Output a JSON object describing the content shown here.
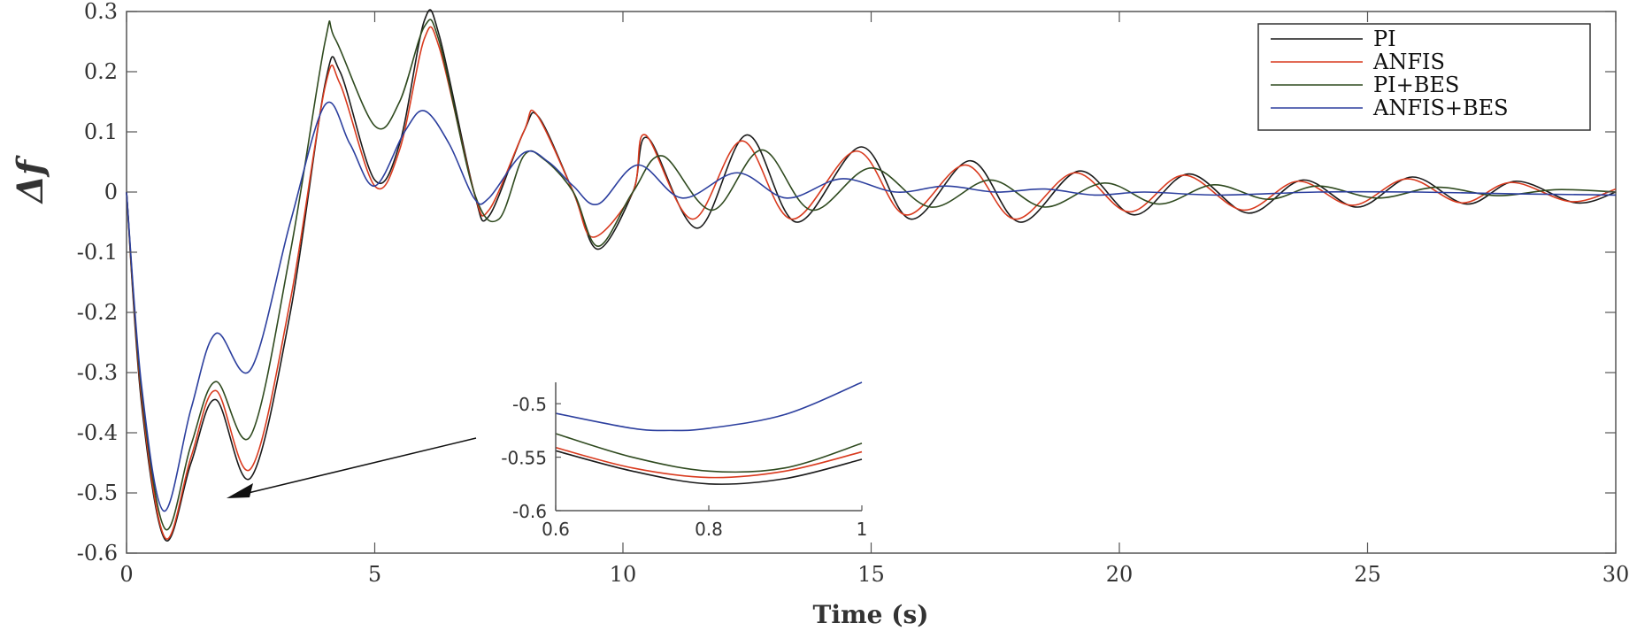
{
  "chart_data": [
    {
      "type": "line",
      "title": "",
      "xlabel": "Time (s)",
      "ylabel": "Δf",
      "xlim": [
        0,
        30
      ],
      "ylim": [
        -0.6,
        0.3
      ],
      "x_ticks": [
        "0",
        "5",
        "10",
        "15",
        "20",
        "25",
        "30"
      ],
      "y_ticks": [
        "-0.6",
        "-0.5",
        "-0.4",
        "-0.3",
        "-0.2",
        "-0.1",
        "0",
        "0.1",
        "0.2",
        "0.3"
      ],
      "grid": false,
      "legend_position": "top-right",
      "series": [
        {
          "name": "PI",
          "color": "#1a1a1a",
          "points": [
            [
              0,
              0
            ],
            [
              0.3,
              -0.35
            ],
            [
              0.78,
              -0.578
            ],
            [
              1.3,
              -0.45
            ],
            [
              1.8,
              -0.345
            ],
            [
              2.5,
              -0.475
            ],
            [
              3.3,
              -0.2
            ],
            [
              4,
              0.18
            ],
            [
              4.3,
              0.2
            ],
            [
              5,
              0.02
            ],
            [
              5.5,
              0.08
            ],
            [
              6,
              0.285
            ],
            [
              6.3,
              0.26
            ],
            [
              7,
              0
            ],
            [
              7.3,
              -0.04
            ],
            [
              8,
              0.1
            ],
            [
              8.3,
              0.125
            ],
            [
              9,
              0
            ],
            [
              9.5,
              -0.095
            ],
            [
              10.2,
              0
            ],
            [
              10.5,
              0.09
            ],
            [
              11.5,
              -0.06
            ],
            [
              12.5,
              0.095
            ],
            [
              13.5,
              -0.05
            ],
            [
              14.8,
              0.075
            ],
            [
              15.8,
              -0.045
            ],
            [
              17,
              0.052
            ],
            [
              18,
              -0.05
            ],
            [
              19.2,
              0.035
            ],
            [
              20.3,
              -0.038
            ],
            [
              21.4,
              0.03
            ],
            [
              22.6,
              -0.035
            ],
            [
              23.7,
              0.02
            ],
            [
              24.8,
              -0.025
            ],
            [
              25.9,
              0.025
            ],
            [
              27,
              -0.02
            ],
            [
              28,
              0.018
            ],
            [
              29.2,
              -0.018
            ],
            [
              30,
              0
            ]
          ]
        },
        {
          "name": "ANFIS",
          "color": "#d93a1e",
          "points": [
            [
              0,
              0
            ],
            [
              0.3,
              -0.34
            ],
            [
              0.78,
              -0.575
            ],
            [
              1.3,
              -0.44
            ],
            [
              1.8,
              -0.33
            ],
            [
              2.5,
              -0.46
            ],
            [
              3.3,
              -0.18
            ],
            [
              4,
              0.175
            ],
            [
              4.3,
              0.18
            ],
            [
              5,
              0.01
            ],
            [
              5.5,
              0.07
            ],
            [
              6,
              0.255
            ],
            [
              6.3,
              0.24
            ],
            [
              7,
              0
            ],
            [
              7.3,
              -0.03
            ],
            [
              8,
              0.1
            ],
            [
              8.25,
              0.13
            ],
            [
              9,
              0
            ],
            [
              9.4,
              -0.075
            ],
            [
              10.2,
              0
            ],
            [
              10.45,
              0.095
            ],
            [
              11.4,
              -0.045
            ],
            [
              12.4,
              0.085
            ],
            [
              13.4,
              -0.045
            ],
            [
              14.7,
              0.068
            ],
            [
              15.7,
              -0.038
            ],
            [
              16.9,
              0.045
            ],
            [
              17.9,
              -0.045
            ],
            [
              19.1,
              0.032
            ],
            [
              20.2,
              -0.033
            ],
            [
              21.3,
              0.028
            ],
            [
              22.5,
              -0.03
            ],
            [
              23.6,
              0.018
            ],
            [
              24.7,
              -0.022
            ],
            [
              25.8,
              0.022
            ],
            [
              26.9,
              -0.018
            ],
            [
              27.9,
              0.016
            ],
            [
              29.1,
              -0.016
            ],
            [
              30,
              0.005
            ]
          ]
        },
        {
          "name": "PI+BES",
          "color": "#2f4a1f",
          "points": [
            [
              0,
              0
            ],
            [
              0.3,
              -0.33
            ],
            [
              0.78,
              -0.56
            ],
            [
              1.3,
              -0.42
            ],
            [
              1.8,
              -0.315
            ],
            [
              2.5,
              -0.405
            ],
            [
              3.3,
              -0.1
            ],
            [
              4,
              0.25
            ],
            [
              4.2,
              0.255
            ],
            [
              5,
              0.11
            ],
            [
              5.5,
              0.15
            ],
            [
              6,
              0.275
            ],
            [
              6.3,
              0.25
            ],
            [
              7,
              0
            ],
            [
              7.5,
              -0.045
            ],
            [
              8,
              0.06
            ],
            [
              8.4,
              0.055
            ],
            [
              9,
              0
            ],
            [
              9.5,
              -0.09
            ],
            [
              10.2,
              0
            ],
            [
              10.8,
              0.06
            ],
            [
              11.8,
              -0.03
            ],
            [
              12.8,
              0.07
            ],
            [
              13.8,
              -0.03
            ],
            [
              15,
              0.04
            ],
            [
              16.2,
              -0.025
            ],
            [
              17.4,
              0.02
            ],
            [
              18.5,
              -0.025
            ],
            [
              19.7,
              0.015
            ],
            [
              20.8,
              -0.02
            ],
            [
              21.9,
              0.012
            ],
            [
              23,
              -0.012
            ],
            [
              24,
              0.01
            ],
            [
              25.2,
              -0.01
            ],
            [
              26.4,
              0.008
            ],
            [
              27.6,
              -0.006
            ],
            [
              28.8,
              0.004
            ],
            [
              30,
              0
            ]
          ]
        },
        {
          "name": "ANFIS+BES",
          "color": "#2c3f9e",
          "points": [
            [
              0,
              0
            ],
            [
              0.3,
              -0.32
            ],
            [
              0.75,
              -0.53
            ],
            [
              1.3,
              -0.36
            ],
            [
              1.8,
              -0.235
            ],
            [
              2.5,
              -0.295
            ],
            [
              3.3,
              -0.05
            ],
            [
              4,
              0.145
            ],
            [
              4.5,
              0.08
            ],
            [
              5,
              0.01
            ],
            [
              5.6,
              0.1
            ],
            [
              6,
              0.135
            ],
            [
              6.5,
              0.08
            ],
            [
              7,
              -0.01
            ],
            [
              7.3,
              -0.01
            ],
            [
              8,
              0.065
            ],
            [
              8.5,
              0.05
            ],
            [
              9,
              0.01
            ],
            [
              9.5,
              -0.02
            ],
            [
              10.3,
              0.045
            ],
            [
              11.2,
              -0.01
            ],
            [
              12.3,
              0.032
            ],
            [
              13.3,
              -0.01
            ],
            [
              14.4,
              0.022
            ],
            [
              15.5,
              0
            ],
            [
              16.5,
              0.01
            ],
            [
              17.5,
              0
            ],
            [
              18.5,
              0.005
            ],
            [
              19.5,
              -0.005
            ],
            [
              20.5,
              0
            ],
            [
              22,
              -0.005
            ],
            [
              24,
              0
            ],
            [
              26,
              0
            ],
            [
              28,
              -0.003
            ],
            [
              30,
              -0.005
            ]
          ]
        }
      ]
    },
    {
      "type": "line",
      "title": "",
      "xlabel": "",
      "ylabel": "",
      "xlim": [
        0.6,
        1
      ],
      "ylim": [
        -0.6,
        -0.48
      ],
      "x_ticks": [
        "0.6",
        "0.8",
        "1"
      ],
      "y_ticks": [
        "-0.6",
        "-0.55",
        "-0.5"
      ],
      "grid": false,
      "series": [
        {
          "name": "PI",
          "color": "#1a1a1a",
          "points": [
            [
              0.6,
              -0.544
            ],
            [
              0.7,
              -0.563
            ],
            [
              0.8,
              -0.575
            ],
            [
              0.9,
              -0.57
            ],
            [
              1,
              -0.552
            ]
          ]
        },
        {
          "name": "ANFIS",
          "color": "#d93a1e",
          "points": [
            [
              0.6,
              -0.541
            ],
            [
              0.7,
              -0.56
            ],
            [
              0.8,
              -0.569
            ],
            [
              0.9,
              -0.563
            ],
            [
              1,
              -0.545
            ]
          ]
        },
        {
          "name": "PI+BES",
          "color": "#2f4a1f",
          "points": [
            [
              0.6,
              -0.528
            ],
            [
              0.7,
              -0.55
            ],
            [
              0.8,
              -0.563
            ],
            [
              0.9,
              -0.56
            ],
            [
              1,
              -0.537
            ]
          ]
        },
        {
          "name": "ANFIS+BES",
          "color": "#2c3f9e",
          "points": [
            [
              0.6,
              -0.509
            ],
            [
              0.7,
              -0.523
            ],
            [
              0.75,
              -0.525
            ],
            [
              0.8,
              -0.523
            ],
            [
              0.9,
              -0.51
            ],
            [
              1,
              -0.48
            ]
          ]
        }
      ]
    }
  ]
}
